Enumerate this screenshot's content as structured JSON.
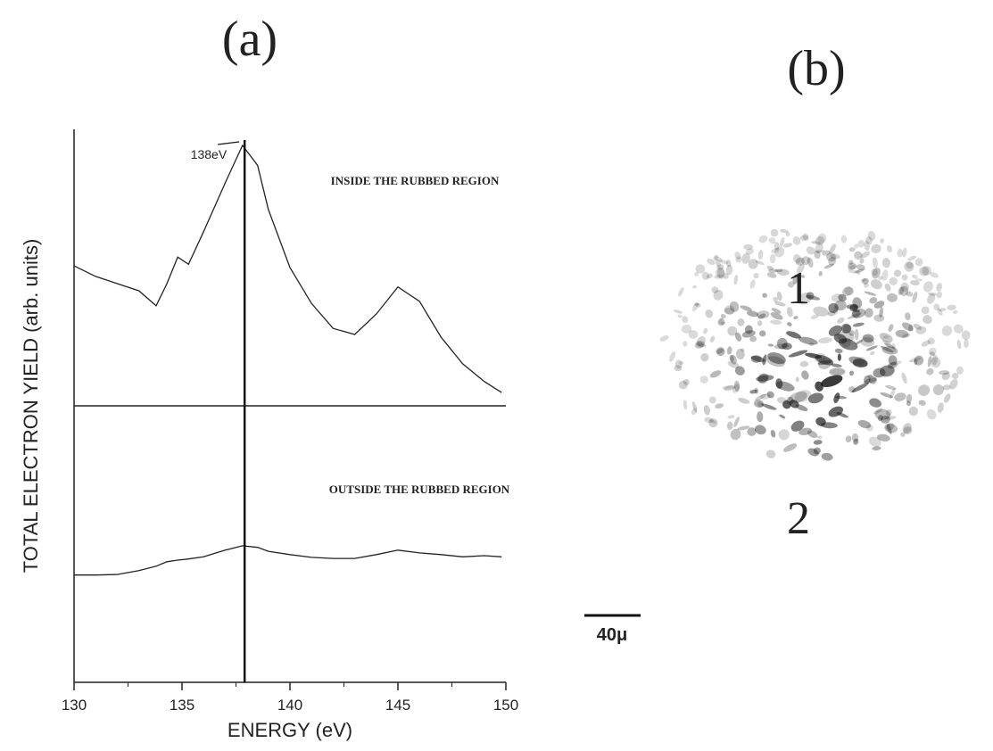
{
  "chart_data": {
    "type": "line",
    "title": "(a)",
    "x_label": "ENERGY (eV)",
    "y_label": "TOTAL ELECTRON YIELD (arb. units)",
    "xlim": [
      130,
      150
    ],
    "xticks": [
      130,
      135,
      140,
      145,
      150
    ],
    "ylim": [
      0,
      100
    ],
    "x": [
      130,
      131,
      132,
      133,
      133.8,
      134.3,
      134.8,
      135.3,
      136,
      137,
      137.8,
      138.5,
      139,
      140,
      141,
      142,
      143,
      144,
      145,
      146,
      147,
      148,
      149,
      149.8
    ],
    "series": [
      {
        "name": "INSIDE THE RUBBED REGION",
        "color": "#222222",
        "values": [
          75.3,
          73.4,
          72.1,
          70.8,
          68.1,
          72.1,
          76.9,
          75.6,
          81.5,
          90.3,
          97.1,
          93.5,
          85.5,
          75.0,
          68.5,
          64.0,
          62.9,
          66.6,
          71.5,
          68.9,
          62.4,
          57.6,
          54.4,
          52.4
        ]
      },
      {
        "name": "OUTSIDE THE RUBBED REGION",
        "color": "#222222",
        "values": [
          19.4,
          19.4,
          19.5,
          20.2,
          21.0,
          21.8,
          22.1,
          22.3,
          22.7,
          23.9,
          24.7,
          24.4,
          23.7,
          23.1,
          22.6,
          22.4,
          22.4,
          23.1,
          23.9,
          23.4,
          23.1,
          22.7,
          22.9,
          22.7
        ]
      }
    ],
    "annotations": [
      {
        "text": "138eV",
        "x": 137.9
      }
    ]
  },
  "panel_b": {
    "title": "(b)",
    "labels": [
      "1",
      "2"
    ],
    "scale_bar": "40μ"
  }
}
